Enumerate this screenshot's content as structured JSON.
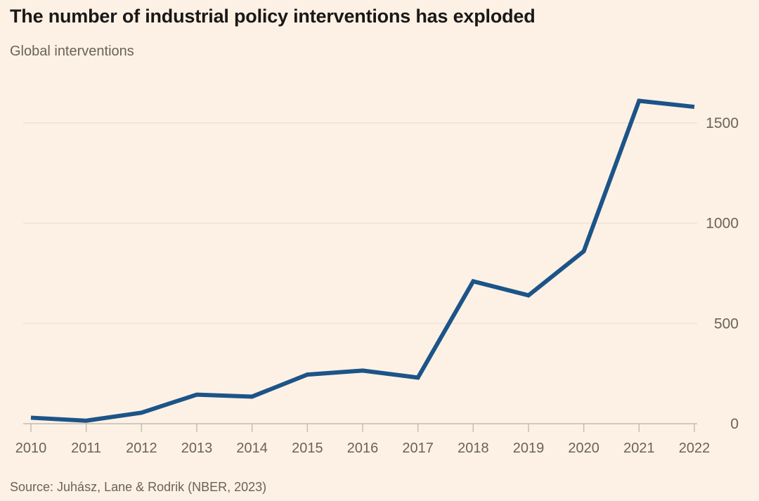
{
  "chart_data": {
    "type": "line",
    "title": "The number of industrial policy interventions has exploded",
    "subtitle": "Global interventions",
    "source": "Source: Juhász, Lane & Rodrik (NBER, 2023)",
    "x": [
      "2010",
      "2011",
      "2012",
      "2013",
      "2014",
      "2015",
      "2016",
      "2017",
      "2018",
      "2019",
      "2020",
      "2021",
      "2022"
    ],
    "series": [
      {
        "name": "Global interventions",
        "values": [
          30,
          15,
          55,
          145,
          135,
          245,
          265,
          230,
          710,
          640,
          860,
          1610,
          1580
        ]
      }
    ],
    "xlabel": "",
    "ylabel": "",
    "ylim": [
      0,
      1650
    ],
    "yticks": [
      0,
      500,
      1000,
      1500
    ],
    "ytick_labels": [
      "0",
      "500",
      "1000",
      "1500"
    ],
    "ytick_side": "right",
    "grid": true,
    "legend": false
  },
  "colors": {
    "background": "#fdf1e5",
    "line": "#1c5488",
    "gridline": "#f2e1d3",
    "axis": "#c3bab0",
    "tick": "#c3bab0",
    "title_text": "#1a1817",
    "secondary_text": "#6b6257"
  }
}
